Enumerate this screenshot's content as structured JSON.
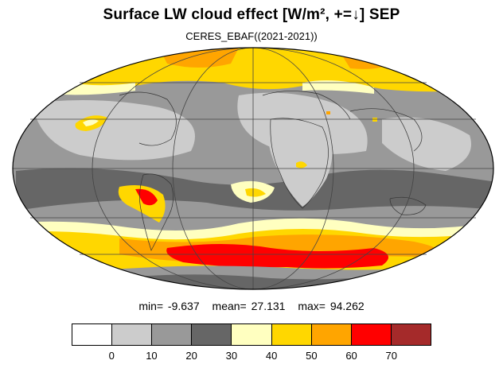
{
  "title": "Surface LW cloud effect [W/m², +=↓]  SEP",
  "subtitle": "CERES_EBAF((2021-2021))",
  "stats": {
    "min_label": "min=  -9.637",
    "mean_label": "mean=  27.131",
    "max_label": "max=  94.262"
  },
  "colorbar": {
    "colors": [
      "#ffffff",
      "#cccccc",
      "#999999",
      "#666666",
      "#ffffc0",
      "#ffd700",
      "#ffa500",
      "#ff0000",
      "#a52a2a"
    ],
    "tick_labels": [
      "0",
      "10",
      "20",
      "30",
      "40",
      "50",
      "60",
      "70"
    ]
  }
}
